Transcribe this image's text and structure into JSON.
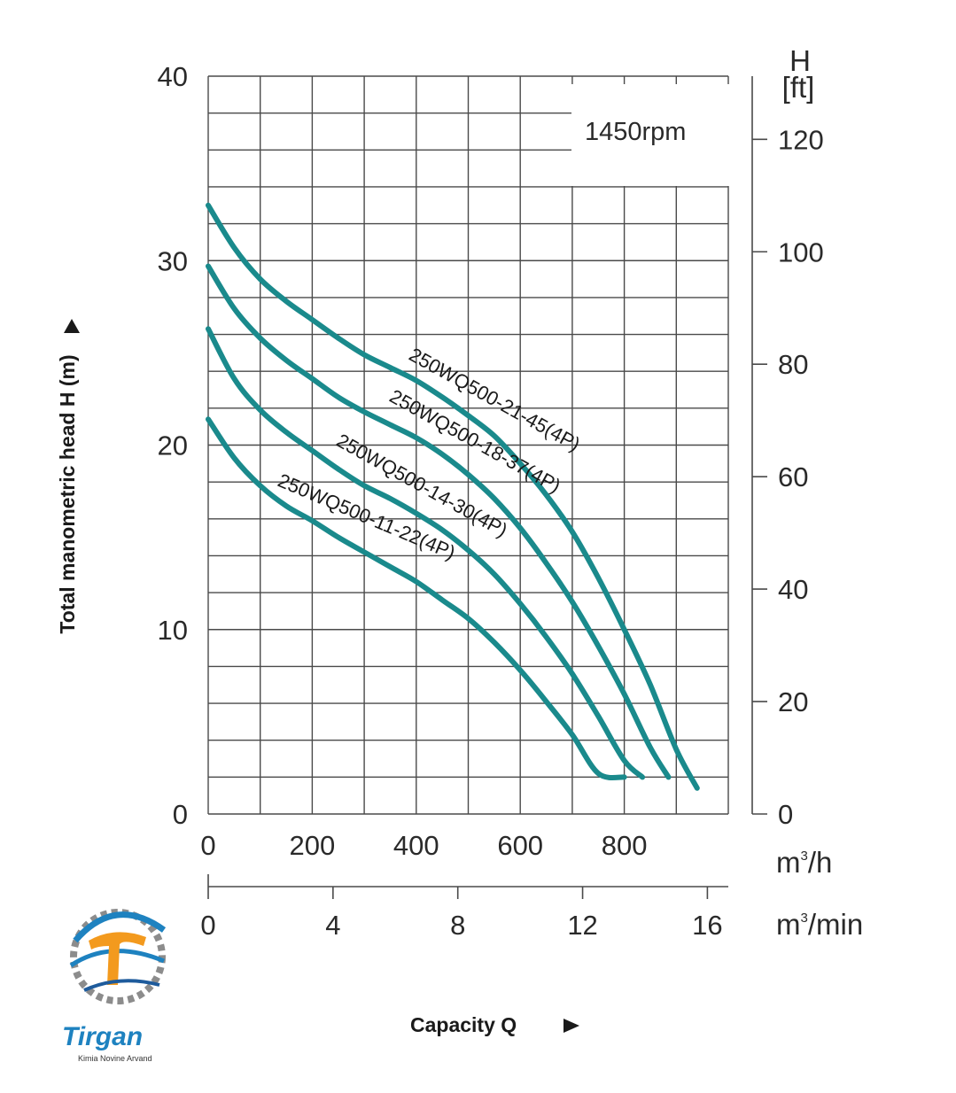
{
  "chart_data": {
    "type": "line",
    "title": "",
    "annotation": "1450rpm",
    "xlabel": "Capacity Q",
    "ylabel": "Total manometric head H (m)",
    "x_unit": "m³/h",
    "x2_unit": "m³/min",
    "y2_title": "H",
    "y2_unit": "[ft]",
    "xlim": [
      0,
      1000
    ],
    "ylim": [
      0,
      40
    ],
    "x_ticks": [
      "0",
      "200",
      "400",
      "600",
      "800"
    ],
    "x_tick_values": [
      0,
      200,
      400,
      600,
      800
    ],
    "x2_ticks": [
      "0",
      "4",
      "8",
      "12",
      "16"
    ],
    "x2_tick_values": [
      0,
      4,
      8,
      12,
      16
    ],
    "y_ticks": [
      "0",
      "10",
      "20",
      "30",
      "40"
    ],
    "y_tick_values": [
      0,
      10,
      20,
      30,
      40
    ],
    "y2_ticks": [
      "0",
      "20",
      "40",
      "60",
      "80",
      "100",
      "120"
    ],
    "y2_tick_values": [
      0,
      20,
      40,
      60,
      80,
      100,
      120
    ],
    "grid": true,
    "series": [
      {
        "name": "250WQ500-21-45(4P)",
        "points": [
          [
            0,
            33
          ],
          [
            50,
            30.7
          ],
          [
            100,
            29
          ],
          [
            150,
            27.8
          ],
          [
            200,
            26.8
          ],
          [
            250,
            25.8
          ],
          [
            300,
            24.9
          ],
          [
            350,
            24.2
          ],
          [
            400,
            23.5
          ],
          [
            450,
            22.6
          ],
          [
            500,
            21.6
          ],
          [
            550,
            20.5
          ],
          [
            600,
            19.0
          ],
          [
            650,
            17.3
          ],
          [
            700,
            15.3
          ],
          [
            750,
            12.8
          ],
          [
            800,
            10.0
          ],
          [
            850,
            7.0
          ],
          [
            900,
            3.5
          ],
          [
            940,
            1.4
          ]
        ]
      },
      {
        "name": "250WQ500-18-37(4P)",
        "points": [
          [
            0,
            29.7
          ],
          [
            50,
            27.4
          ],
          [
            100,
            25.8
          ],
          [
            150,
            24.6
          ],
          [
            200,
            23.6
          ],
          [
            250,
            22.6
          ],
          [
            300,
            21.8
          ],
          [
            350,
            21.1
          ],
          [
            400,
            20.4
          ],
          [
            450,
            19.5
          ],
          [
            500,
            18.4
          ],
          [
            550,
            17.1
          ],
          [
            600,
            15.5
          ],
          [
            650,
            13.6
          ],
          [
            700,
            11.5
          ],
          [
            750,
            9.1
          ],
          [
            800,
            6.5
          ],
          [
            850,
            3.6
          ],
          [
            885,
            2.0
          ]
        ]
      },
      {
        "name": "250WQ500-14-30(4P)",
        "points": [
          [
            0,
            26.3
          ],
          [
            50,
            23.6
          ],
          [
            100,
            21.9
          ],
          [
            150,
            20.7
          ],
          [
            200,
            19.7
          ],
          [
            250,
            18.7
          ],
          [
            300,
            17.8
          ],
          [
            350,
            17.1
          ],
          [
            400,
            16.3
          ],
          [
            450,
            15.4
          ],
          [
            500,
            14.3
          ],
          [
            550,
            13.0
          ],
          [
            600,
            11.4
          ],
          [
            650,
            9.6
          ],
          [
            700,
            7.6
          ],
          [
            750,
            5.3
          ],
          [
            800,
            2.9
          ],
          [
            835,
            2.0
          ]
        ]
      },
      {
        "name": "250WQ500-11-22(4P)",
        "points": [
          [
            0,
            21.4
          ],
          [
            50,
            19.3
          ],
          [
            100,
            17.8
          ],
          [
            150,
            16.7
          ],
          [
            200,
            15.9
          ],
          [
            250,
            15.0
          ],
          [
            300,
            14.2
          ],
          [
            350,
            13.4
          ],
          [
            400,
            12.6
          ],
          [
            450,
            11.6
          ],
          [
            500,
            10.6
          ],
          [
            550,
            9.3
          ],
          [
            600,
            7.8
          ],
          [
            650,
            6.1
          ],
          [
            700,
            4.3
          ],
          [
            750,
            2.2
          ],
          [
            800,
            2.0
          ]
        ]
      }
    ]
  },
  "logo": {
    "name": "Tirgan",
    "tagline": "Kimia Novine Arvand",
    "colors": {
      "blue": "#1e82c0",
      "orange": "#f39a1e",
      "gray": "#8c8c8c"
    }
  },
  "colors": {
    "curve": "#1a8a8c",
    "grid": "#4a4a4a",
    "axis": "#4a4a4a"
  }
}
